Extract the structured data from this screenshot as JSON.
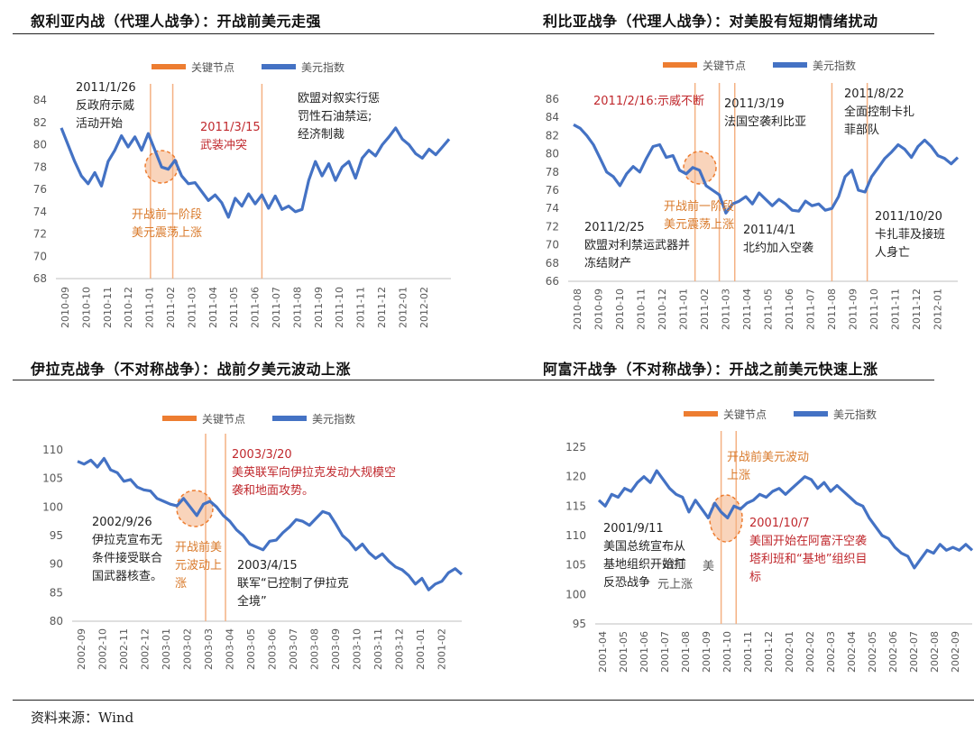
{
  "titles": {
    "syria": "叙利亚内战（代理人战争）：开战前美元走强",
    "libya": "利比亚战争（代理人战争）：对美股有短期情绪扰动",
    "iraq": "伊拉克战争（不对称战争）：战前夕美元波动上涨",
    "afghan": "阿富汗战争（不对称战争）：开战之前美元快速上涨"
  },
  "source": "资料来源：Wind",
  "colors": {
    "line": "#4472C4",
    "key_node": "#ED7D31",
    "red_text": "#C0282D",
    "orange_text": "#D97A2B",
    "circle_fill": "#F4B183"
  },
  "chart_data": [
    {
      "id": "syria",
      "type": "line",
      "title": "叙利亚内战（代理人战争）：开战前美元走强",
      "legend": [
        "关键节点",
        "美元指数"
      ],
      "legend_position": "top-center",
      "ylim": [
        68,
        84
      ],
      "yticks": [
        "68",
        "70",
        "72",
        "74",
        "76",
        "78",
        "80",
        "82",
        "84"
      ],
      "xticks": [
        "2010-09",
        "2010-10",
        "2010-11",
        "2010-12",
        "2011-01",
        "2011-02",
        "2011-03",
        "2011-04",
        "2011-05",
        "2011-06",
        "2011-07",
        "2011-08",
        "2011-09",
        "2011-10",
        "2011-11",
        "2011-12",
        "2012-01",
        "2012-02"
      ],
      "series": [
        {
          "name": "美元指数",
          "x": [
            0,
            0.3,
            0.6,
            0.9,
            1.2,
            1.5,
            1.8,
            2.1,
            2.4,
            2.7,
            3.0,
            3.3,
            3.6,
            3.9,
            4.2,
            4.5,
            4.8,
            5.1,
            5.4,
            5.7,
            6.0,
            6.3,
            6.6,
            6.9,
            7.2,
            7.5,
            7.8,
            8.1,
            8.4,
            8.7,
            9.0,
            9.3,
            9.6,
            9.9,
            10.2,
            10.5,
            10.8,
            11.1,
            11.4,
            11.7,
            12.0,
            12.3,
            12.6,
            12.9,
            13.2,
            13.5,
            13.8,
            14.1,
            14.4,
            14.7,
            15.0,
            15.3,
            15.6,
            15.9,
            16.2,
            16.5,
            16.8,
            17.1,
            17.4
          ],
          "values": [
            81.5,
            80,
            78.5,
            77.2,
            76.5,
            77.5,
            76.3,
            78.5,
            79.5,
            80.8,
            79.8,
            80.7,
            79.5,
            81,
            79.5,
            78,
            77.8,
            78.6,
            77.2,
            76.5,
            76.6,
            75.8,
            75,
            75.5,
            74.8,
            73.5,
            75.2,
            74.5,
            75.6,
            74.7,
            75.5,
            74.3,
            75.4,
            74.2,
            74.5,
            74,
            74.2,
            76.8,
            78.5,
            77.2,
            78.3,
            76.8,
            78,
            78.5,
            77,
            78.8,
            79.5,
            79,
            80,
            80.7,
            81.5,
            80.5,
            80,
            79.2,
            78.8,
            79.6,
            79.1,
            79.8,
            80.5
          ]
        }
      ],
      "key_dates": [
        4.0,
        5.0,
        9.0
      ],
      "annotations": [
        {
          "text": "2011/1/26",
          "color": "dark"
        },
        {
          "text": "反政府示威",
          "color": "dark"
        },
        {
          "text": "活动开始",
          "color": "dark"
        },
        {
          "text": "2011/3/15",
          "color": "red"
        },
        {
          "text": "武装冲突",
          "color": "red"
        },
        {
          "text": "欧盟对叙实行惩",
          "color": "dark"
        },
        {
          "text": "罚性石油禁运;",
          "color": "dark"
        },
        {
          "text": "经济制裁",
          "color": "dark"
        },
        {
          "text": "开战前一阶段",
          "color": "orange"
        },
        {
          "text": "美元震荡上涨",
          "color": "orange"
        }
      ]
    },
    {
      "id": "libya",
      "type": "line",
      "title": "利比亚战争（代理人战争）：对美股有短期情绪扰动",
      "legend": [
        "关键节点",
        "美元指数"
      ],
      "legend_position": "top-center",
      "ylim": [
        66,
        86
      ],
      "yticks": [
        "66",
        "68",
        "70",
        "72",
        "74",
        "76",
        "78",
        "80",
        "82",
        "84",
        "86"
      ],
      "xticks": [
        "2010-08",
        "2010-09",
        "2010-10",
        "2010-11",
        "2010-12",
        "2011-01",
        "2011-02",
        "2011-03",
        "2011-04",
        "2011-05",
        "2011-06",
        "2011-07",
        "2011-08",
        "2011-09",
        "2011-10",
        "2011-11",
        "2011-12",
        "2012-01"
      ],
      "series": [
        {
          "name": "美元指数",
          "x": [
            0,
            0.3,
            0.6,
            0.9,
            1.2,
            1.5,
            1.8,
            2.1,
            2.4,
            2.7,
            3.0,
            3.3,
            3.6,
            3.9,
            4.2,
            4.5,
            4.8,
            5.1,
            5.4,
            5.7,
            6.0,
            6.3,
            6.6,
            6.9,
            7.2,
            7.5,
            7.8,
            8.1,
            8.4,
            8.7,
            9.0,
            9.3,
            9.6,
            9.9,
            10.2,
            10.5,
            10.8,
            11.1,
            11.4,
            11.7,
            12.0,
            12.3,
            12.6,
            12.9,
            13.2,
            13.5,
            13.8,
            14.1,
            14.4,
            14.7,
            15.0,
            15.3,
            15.6,
            15.9,
            16.2,
            16.5,
            16.8,
            17.1,
            17.4
          ],
          "values": [
            83.2,
            82.8,
            82,
            81,
            79.5,
            78,
            77.5,
            76.5,
            77.8,
            78.6,
            78,
            79.5,
            80.8,
            81,
            79.6,
            79.8,
            78.2,
            77.8,
            78.5,
            78.2,
            76.5,
            76,
            75.5,
            73.5,
            74.5,
            74.8,
            75.3,
            74.5,
            75.7,
            75,
            74.3,
            75,
            74.5,
            73.8,
            73.7,
            74.8,
            74.3,
            74.5,
            73.8,
            74,
            75.3,
            77.5,
            78.2,
            76,
            75.8,
            77.5,
            78.5,
            79.5,
            80.2,
            81,
            80.5,
            79.6,
            80.8,
            81.5,
            80.8,
            79.8,
            79.5,
            78.9,
            79.6
          ]
        }
      ],
      "key_dates": [
        5.5,
        6.6,
        7.3,
        11.7,
        13.3
      ],
      "annotations": [
        {
          "text": "2011/2/16:示威不断",
          "color": "red"
        },
        {
          "text": "2011/3/19",
          "color": "dark"
        },
        {
          "text": "法国空袭利比亚",
          "color": "dark"
        },
        {
          "text": "2011/8/22",
          "color": "dark"
        },
        {
          "text": "全面控制卡扎",
          "color": "dark"
        },
        {
          "text": "菲部队",
          "color": "dark"
        },
        {
          "text": "2011/2/25",
          "color": "dark"
        },
        {
          "text": "欧盟对利禁运武器并",
          "color": "dark"
        },
        {
          "text": "冻结财产",
          "color": "dark"
        },
        {
          "text": "2011/4/1",
          "color": "dark"
        },
        {
          "text": "北约加入空袭",
          "color": "dark"
        },
        {
          "text": "2011/10/20",
          "color": "dark"
        },
        {
          "text": "卡扎菲及接班",
          "color": "dark"
        },
        {
          "text": "人身亡",
          "color": "dark"
        },
        {
          "text": "开战前一阶段",
          "color": "orange"
        },
        {
          "text": "美元震荡上涨",
          "color": "orange"
        }
      ]
    },
    {
      "id": "iraq",
      "type": "line",
      "title": "伊拉克战争（不对称战争）：战前夕美元波动上涨",
      "legend": [
        "关键节点",
        "美元指数"
      ],
      "legend_position": "top-center",
      "ylim": [
        80,
        110
      ],
      "yticks": [
        "80",
        "85",
        "90",
        "95",
        "100",
        "105",
        "110"
      ],
      "xticks": [
        "2002-09",
        "2002-10",
        "2002-11",
        "2002-12",
        "2003-01",
        "2003-02",
        "2003-03",
        "2003-04",
        "2003-05",
        "2003-06",
        "2003-07",
        "2003-08",
        "2003-09",
        "2003-10",
        "2003-11",
        "2003-12",
        "2001-01",
        "2001-02"
      ],
      "series": [
        {
          "name": "美元指数",
          "x": [
            0,
            0.3,
            0.6,
            0.9,
            1.2,
            1.5,
            1.8,
            2.1,
            2.4,
            2.7,
            3.0,
            3.3,
            3.6,
            3.9,
            4.2,
            4.5,
            4.8,
            5.1,
            5.4,
            5.7,
            6.0,
            6.3,
            6.6,
            6.9,
            7.2,
            7.5,
            7.8,
            8.1,
            8.4,
            8.7,
            9.0,
            9.3,
            9.6,
            9.9,
            10.2,
            10.5,
            10.8,
            11.1,
            11.4,
            11.7,
            12.0,
            12.3,
            12.6,
            12.9,
            13.2,
            13.5,
            13.8,
            14.1,
            14.4,
            14.7,
            15.0,
            15.3,
            15.6,
            15.9,
            16.2,
            16.5,
            16.8,
            17.1,
            17.4
          ],
          "values": [
            108,
            107.5,
            108.2,
            107,
            108.5,
            106.5,
            106,
            104.5,
            104.8,
            103.5,
            103,
            102.8,
            101.5,
            101,
            100.5,
            100.2,
            101.5,
            100,
            98.5,
            100.5,
            101,
            100,
            98.5,
            97.5,
            96,
            95,
            93.5,
            93,
            92.5,
            94,
            94.2,
            95.5,
            96.5,
            97.8,
            97.5,
            96.8,
            98,
            99.2,
            98.8,
            97,
            95,
            94,
            92.5,
            93.5,
            92,
            91,
            91.8,
            90.5,
            89.5,
            89,
            88,
            86.5,
            87.5,
            85.5,
            86.5,
            87,
            88.5,
            89.2,
            88.2
          ]
        }
      ],
      "key_dates": [
        5.8,
        6.7
      ],
      "annotations": [
        {
          "text": "2003/3/20",
          "color": "red"
        },
        {
          "text": "美英联军向伊拉克发动大规模空",
          "color": "red"
        },
        {
          "text": "袭和地面攻势。",
          "color": "red"
        },
        {
          "text": "2002/9/26",
          "color": "dark"
        },
        {
          "text": "伊拉克宣布无",
          "color": "dark"
        },
        {
          "text": "条件接受联合",
          "color": "dark"
        },
        {
          "text": "国武器核查。",
          "color": "dark"
        },
        {
          "text": "开战前美",
          "color": "orange"
        },
        {
          "text": "元波动上",
          "color": "orange"
        },
        {
          "text": "涨",
          "color": "orange"
        },
        {
          "text": "2003/4/15",
          "color": "dark"
        },
        {
          "text": "联军“已控制了伊拉克",
          "color": "dark"
        },
        {
          "text": "全境”",
          "color": "dark"
        }
      ]
    },
    {
      "id": "afghan",
      "type": "line",
      "title": "阿富汗战争（不对称战争）：开战之前美元快速上涨",
      "legend": [
        "关键节点",
        "美元指数"
      ],
      "legend_position": "top-center",
      "ylim": [
        95,
        125
      ],
      "yticks": [
        "95",
        "100",
        "105",
        "110",
        "115",
        "120",
        "125"
      ],
      "xticks": [
        "2001-04",
        "2001-05",
        "2001-06",
        "2001-07",
        "2001-08",
        "2001-09",
        "2001-10",
        "2001-11",
        "2001-12",
        "2002-01",
        "2002-02",
        "2002-03",
        "2002-04",
        "2002-05",
        "2002-06",
        "2002-07",
        "2002-08",
        "2002-09"
      ],
      "series": [
        {
          "name": "美元指数",
          "x": [
            0,
            0.3,
            0.6,
            0.9,
            1.2,
            1.5,
            1.8,
            2.1,
            2.4,
            2.7,
            3.0,
            3.3,
            3.6,
            3.9,
            4.2,
            4.5,
            4.8,
            5.1,
            5.4,
            5.7,
            6.0,
            6.3,
            6.6,
            6.9,
            7.2,
            7.5,
            7.8,
            8.1,
            8.4,
            8.7,
            9.0,
            9.3,
            9.6,
            9.9,
            10.2,
            10.5,
            10.8,
            11.1,
            11.4,
            11.7,
            12.0,
            12.3,
            12.6,
            12.9,
            13.2,
            13.5,
            13.8,
            14.1,
            14.4,
            14.7,
            15.0,
            15.3,
            15.6,
            15.9,
            16.2,
            16.5,
            16.8,
            17.1,
            17.4
          ],
          "values": [
            116,
            115,
            117,
            116.5,
            118,
            117.5,
            119,
            120,
            119,
            121,
            119.5,
            118,
            117,
            116.5,
            114,
            116,
            114.5,
            113,
            115.5,
            114,
            113,
            115,
            114.5,
            115.5,
            116,
            117,
            116.5,
            117.5,
            118,
            117,
            118,
            119,
            120,
            119.5,
            118,
            119,
            117.5,
            118.5,
            117.5,
            116.5,
            115.5,
            115,
            113,
            111.5,
            110,
            109.5,
            108,
            107,
            106.5,
            104.5,
            106,
            107.5,
            107,
            108.5,
            107.5,
            108,
            107.5,
            108.5,
            107.5
          ]
        }
      ],
      "key_dates": [
        5.7,
        6.4
      ],
      "annotations": [
        {
          "text": "开战前美元波动",
          "color": "orange"
        },
        {
          "text": "上涨",
          "color": "orange"
        },
        {
          "text": "2001/9/11",
          "color": "dark"
        },
        {
          "text": "美国总统宣布从",
          "color": "dark"
        },
        {
          "text": "基地组织开始打",
          "color": "dark"
        },
        {
          "text": "反恐战争",
          "color": "dark"
        },
        {
          "text": "2001/10/7",
          "color": "red"
        },
        {
          "text": "美国开始在阿富汗空袭",
          "color": "red"
        },
        {
          "text": "塔利班和“基地”组织目",
          "color": "red"
        },
        {
          "text": "标",
          "color": "red"
        },
        {
          "text": "战前",
          "color": "dark"
        },
        {
          "text": "美",
          "color": "dark"
        },
        {
          "text": "元上涨",
          "color": "dark"
        }
      ]
    }
  ]
}
